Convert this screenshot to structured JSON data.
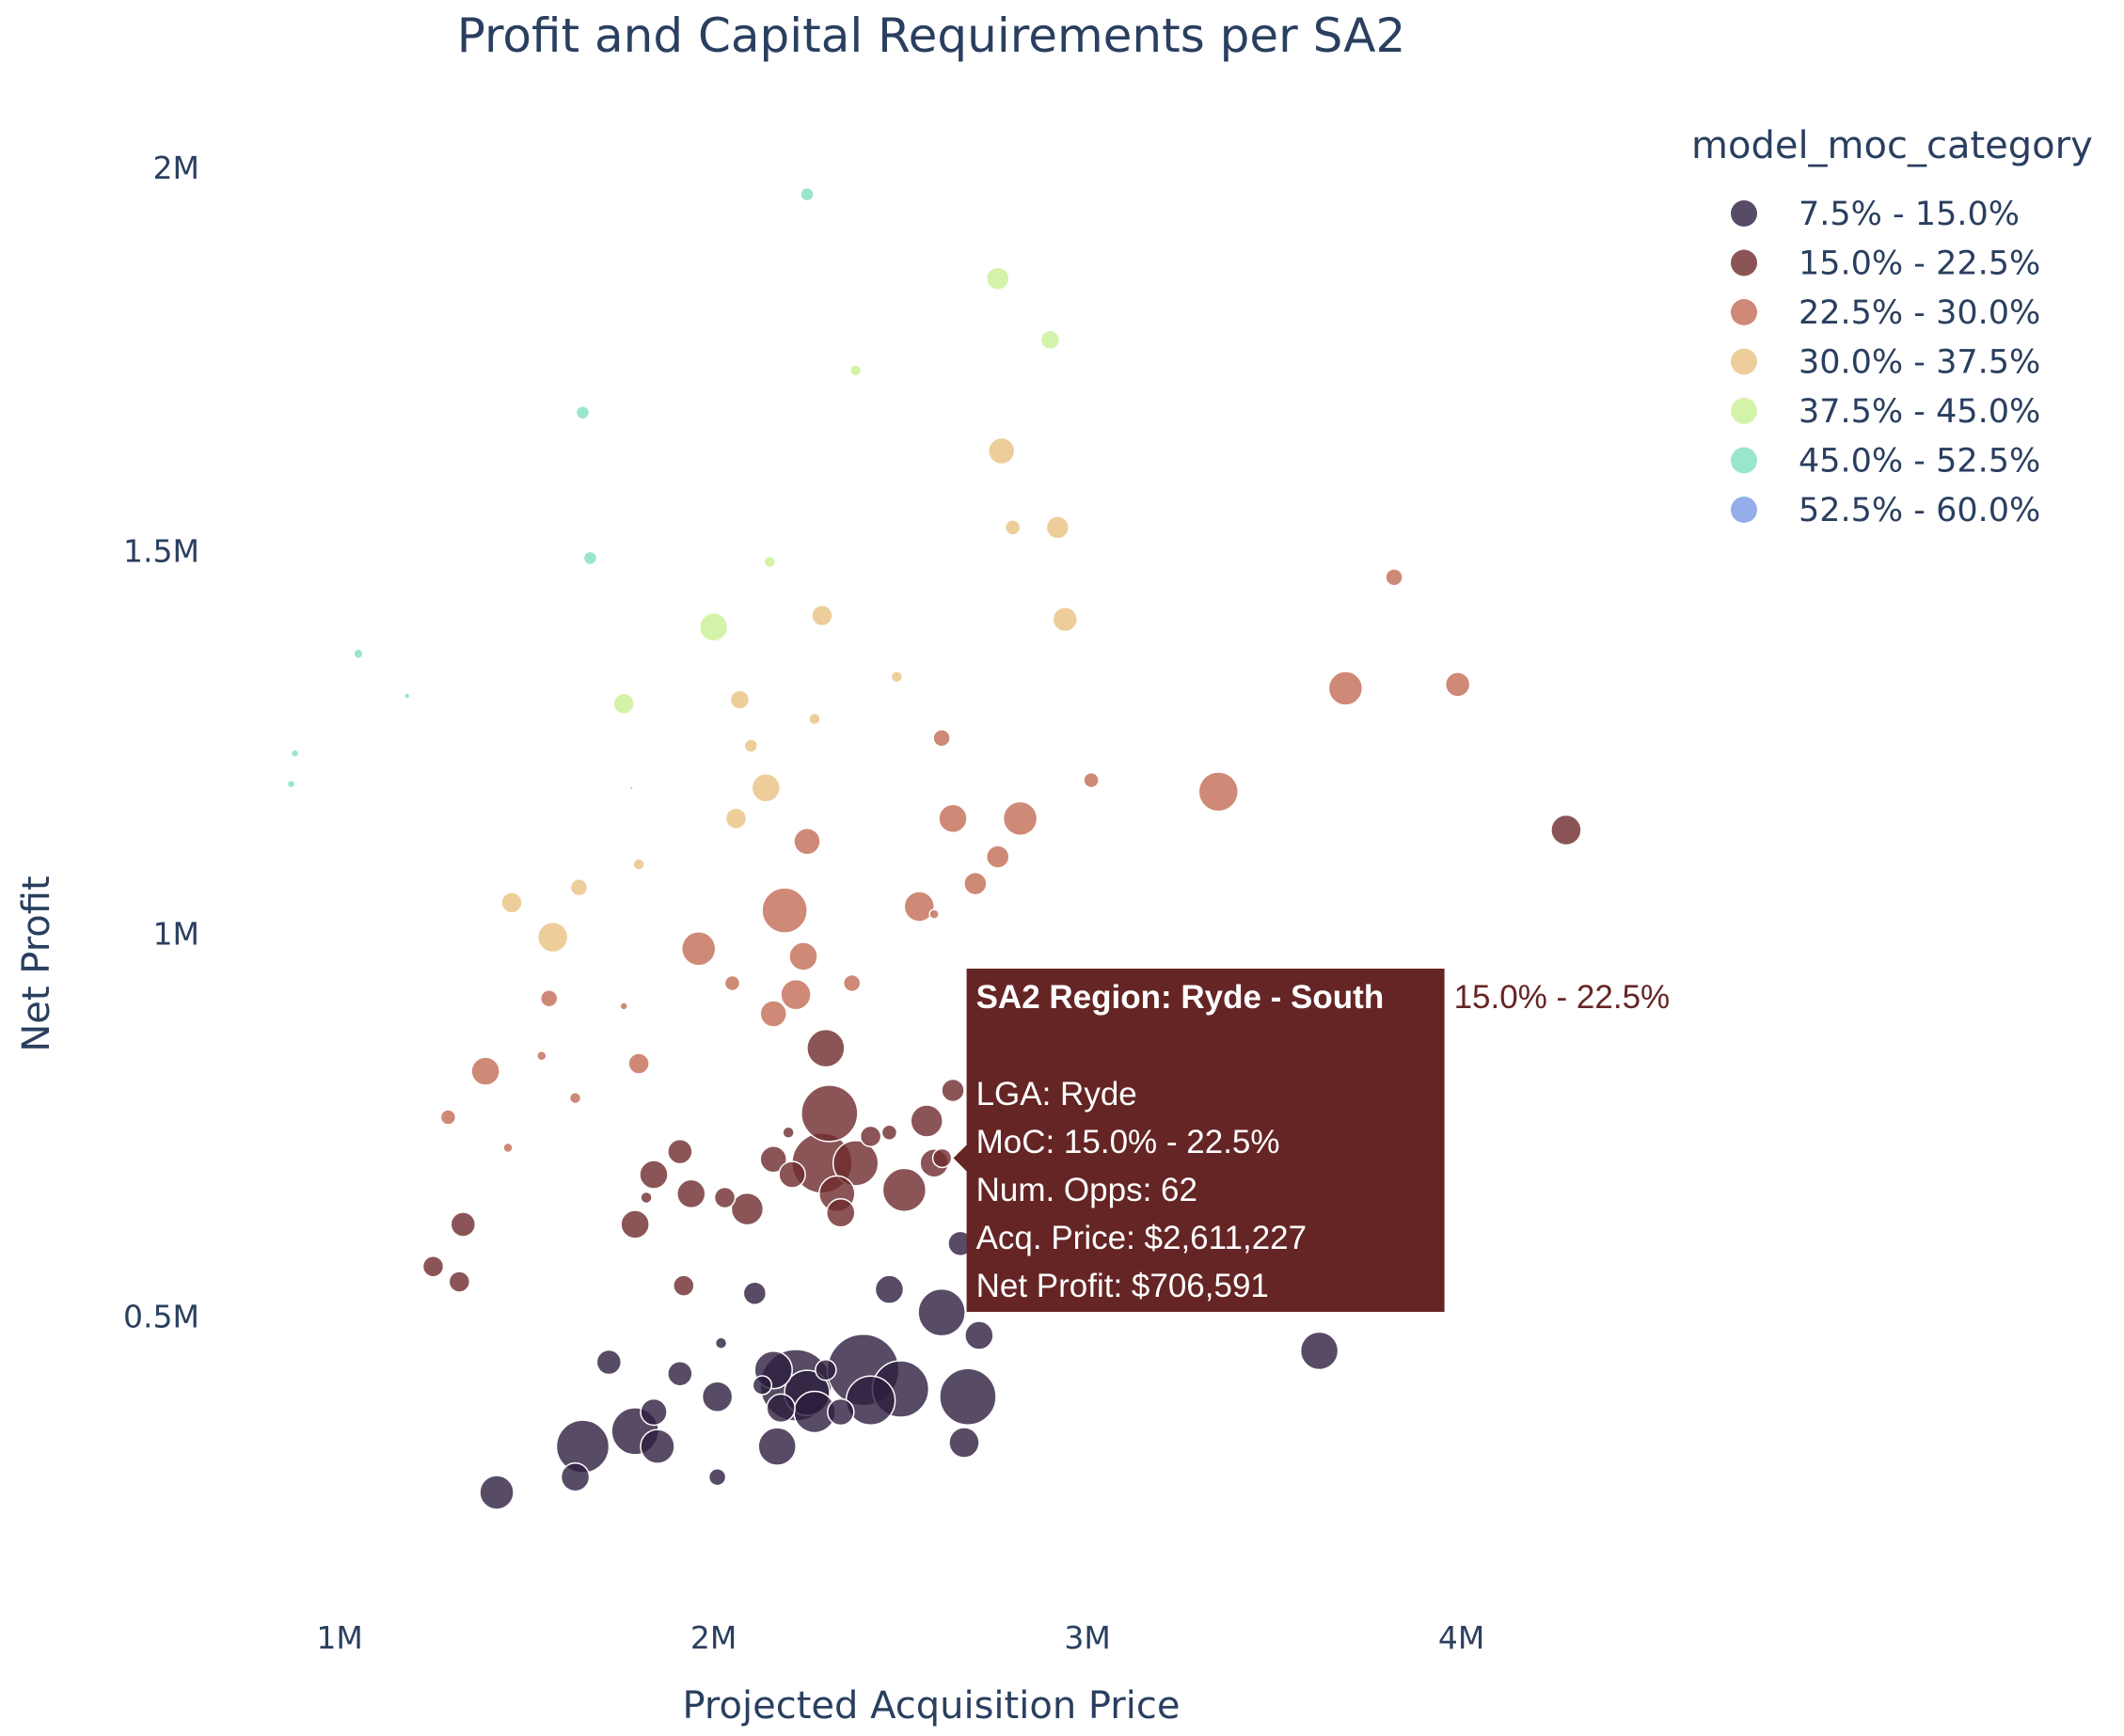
{
  "chart_data": {
    "type": "scatter",
    "title": "Profit and Capital Requirements per SA2",
    "xlabel": "Projected Acquisition Price",
    "ylabel": "Net Profit",
    "xlim": [
      650000,
      4650000
    ],
    "ylim": [
      130000,
      2080000
    ],
    "x_ticks": [
      {
        "v": 1000000,
        "label": "1M"
      },
      {
        "v": 2000000,
        "label": "2M"
      },
      {
        "v": 3000000,
        "label": "3M"
      },
      {
        "v": 4000000,
        "label": "4M"
      }
    ],
    "y_ticks": [
      {
        "v": 500000,
        "label": "0.5M"
      },
      {
        "v": 1000000,
        "label": "1M"
      },
      {
        "v": 1500000,
        "label": "1.5M"
      },
      {
        "v": 2000000,
        "label": "2M"
      }
    ],
    "grid": false,
    "legend": {
      "title": "model_moc_category",
      "position": "top-right"
    },
    "series": [
      {
        "name": "7.5% - 15.0%",
        "color": "#2d1e3e",
        "points": [
          [
            1420000,
            270000,
            18
          ],
          [
            1630000,
            290000,
            15
          ],
          [
            1720000,
            440000,
            13
          ],
          [
            1910000,
            425000,
            13
          ],
          [
            1650000,
            330000,
            28
          ],
          [
            1790000,
            350000,
            25
          ],
          [
            1850000,
            330000,
            18
          ],
          [
            1840000,
            375000,
            14
          ],
          [
            2010000,
            395000,
            16
          ],
          [
            2010000,
            290000,
            9
          ],
          [
            2020000,
            465000,
            6
          ],
          [
            2110000,
            530000,
            12
          ],
          [
            2170000,
            330000,
            20
          ],
          [
            2180000,
            380000,
            15
          ],
          [
            2220000,
            410000,
            38
          ],
          [
            2160000,
            430000,
            20
          ],
          [
            2250000,
            400000,
            24
          ],
          [
            2300000,
            430000,
            11
          ],
          [
            2340000,
            375000,
            14
          ],
          [
            2400000,
            430000,
            38
          ],
          [
            2500000,
            405000,
            30
          ],
          [
            2420000,
            390000,
            26
          ],
          [
            2470000,
            535000,
            15
          ],
          [
            2610000,
            505000,
            25
          ],
          [
            2680000,
            395000,
            30
          ],
          [
            2670000,
            335000,
            16
          ],
          [
            2710000,
            475000,
            15
          ],
          [
            2660000,
            595000,
            13
          ],
          [
            3620000,
            455000,
            20
          ],
          [
            2130000,
            410000,
            10
          ],
          [
            2270000,
            375000,
            22
          ]
        ]
      },
      {
        "name": "15.0% - 22.5%",
        "color": "#6e2a2d",
        "points": [
          [
            1250000,
            565000,
            11
          ],
          [
            1320000,
            545000,
            11
          ],
          [
            1330000,
            620000,
            13
          ],
          [
            1790000,
            620000,
            15
          ],
          [
            1840000,
            685000,
            15
          ],
          [
            1820000,
            655000,
            6
          ],
          [
            1910000,
            715000,
            13
          ],
          [
            1940000,
            660000,
            15
          ],
          [
            1920000,
            540000,
            11
          ],
          [
            2030000,
            655000,
            11
          ],
          [
            2090000,
            640000,
            17
          ],
          [
            2160000,
            705000,
            14
          ],
          [
            2210000,
            685000,
            14
          ],
          [
            2200000,
            740000,
            6
          ],
          [
            2310000,
            765000,
            30
          ],
          [
            2290000,
            700000,
            32
          ],
          [
            2380000,
            700000,
            24
          ],
          [
            2330000,
            660000,
            19
          ],
          [
            2340000,
            635000,
            15
          ],
          [
            2420000,
            735000,
            11
          ],
          [
            2510000,
            665000,
            23
          ],
          [
            2570000,
            755000,
            17
          ],
          [
            2590000,
            700000,
            15
          ],
          [
            2640000,
            795000,
            12
          ],
          [
            2611227,
            706591,
            10
          ],
          [
            2300000,
            850000,
            20
          ],
          [
            4280000,
            1135000,
            16
          ],
          [
            2470000,
            740000,
            8
          ]
        ]
      },
      {
        "name": "22.5% - 30.0%",
        "color": "#c36c55",
        "points": [
          [
            1290000,
            760000,
            8
          ],
          [
            1390000,
            820000,
            15
          ],
          [
            1450000,
            720000,
            5
          ],
          [
            1540000,
            840000,
            5
          ],
          [
            1560000,
            915000,
            9
          ],
          [
            1630000,
            785000,
            6
          ],
          [
            1760000,
            905000,
            4
          ],
          [
            1800000,
            830000,
            11
          ],
          [
            1960000,
            980000,
            18
          ],
          [
            2050000,
            935000,
            8
          ],
          [
            2160000,
            895000,
            14
          ],
          [
            2190000,
            1030000,
            24
          ],
          [
            2220000,
            920000,
            16
          ],
          [
            2240000,
            970000,
            15
          ],
          [
            2250000,
            1120000,
            14
          ],
          [
            2370000,
            935000,
            9
          ],
          [
            2550000,
            1035000,
            16
          ],
          [
            2590000,
            1025000,
            5
          ],
          [
            2610000,
            1255000,
            9
          ],
          [
            2640000,
            1150000,
            15
          ],
          [
            2700000,
            1065000,
            12
          ],
          [
            2760000,
            1100000,
            12
          ],
          [
            2820000,
            1150000,
            18
          ],
          [
            3010000,
            1200000,
            8
          ],
          [
            3350000,
            1185000,
            21
          ],
          [
            3690000,
            1320000,
            18
          ],
          [
            3820000,
            1465000,
            9
          ],
          [
            3990000,
            1325000,
            13
          ]
        ]
      },
      {
        "name": "30.0% - 37.5%",
        "color": "#e8c282",
        "points": [
          [
            1460000,
            1040000,
            11
          ],
          [
            1570000,
            995000,
            16
          ],
          [
            1640000,
            1060000,
            9
          ],
          [
            1800000,
            1090000,
            6
          ],
          [
            1780000,
            1190000,
            2
          ],
          [
            2060000,
            1150000,
            11
          ],
          [
            2070000,
            1305000,
            10
          ],
          [
            2100000,
            1245000,
            7
          ],
          [
            2140000,
            1190000,
            15
          ],
          [
            2270000,
            1280000,
            6
          ],
          [
            2290000,
            1415000,
            11
          ],
          [
            2490000,
            1335000,
            6
          ],
          [
            2770000,
            1630000,
            14
          ],
          [
            2800000,
            1530000,
            8
          ],
          [
            2920000,
            1530000,
            12
          ],
          [
            2940000,
            1410000,
            13
          ]
        ]
      },
      {
        "name": "37.5% - 45.0%",
        "color": "#c9f095",
        "points": [
          [
            1760000,
            1300000,
            11
          ],
          [
            2000000,
            1400000,
            15
          ],
          [
            2150000,
            1485000,
            6
          ],
          [
            2380000,
            1735000,
            6
          ],
          [
            2760000,
            1855000,
            12
          ],
          [
            2900000,
            1775000,
            10
          ]
        ]
      },
      {
        "name": "45.0% - 52.5%",
        "color": "#7fdfc2",
        "points": [
          [
            870000,
            1195000,
            4
          ],
          [
            880000,
            1235000,
            4
          ],
          [
            1050000,
            1365000,
            5
          ],
          [
            1180000,
            1310000,
            3
          ],
          [
            1650000,
            1680000,
            7
          ],
          [
            1670000,
            1490000,
            7
          ],
          [
            2250000,
            1965000,
            7
          ]
        ]
      },
      {
        "name": "52.5% - 60.0%",
        "color": "#7a9ae6",
        "points": []
      }
    ],
    "hover": {
      "title": "SA2 Region: Ryde - South",
      "lines": [
        "LGA: Ryde",
        "MoC: 15.0% - 22.5%",
        "Num. Opps: 62",
        "Acq. Price: $2,611,227",
        "Net Profit: $706,591"
      ],
      "trace_name": "15.0% - 22.5%",
      "color": "#662525",
      "x": 2611227,
      "y": 706591
    }
  }
}
